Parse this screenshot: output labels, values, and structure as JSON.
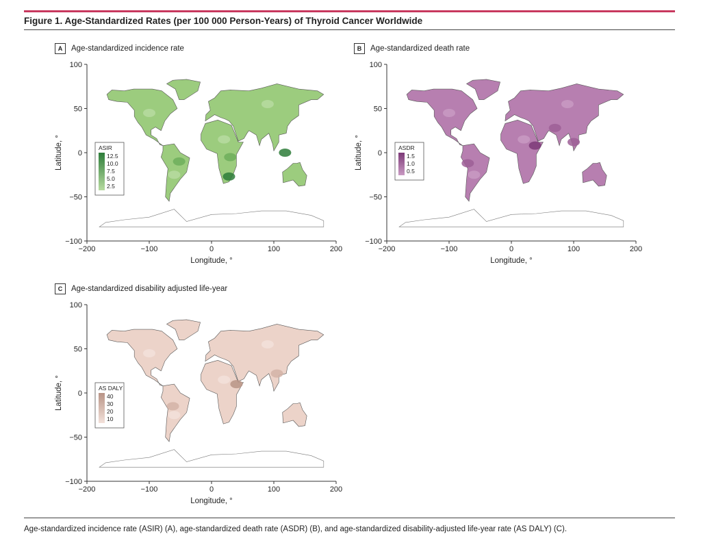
{
  "figure": {
    "title": "Figure 1. Age-Standardized Rates (per 100 000 Person-Years) of Thyroid Cancer Worldwide",
    "caption": "Age-standardized incidence rate (ASIR) (A), age-standardized death rate (ASDR) (B), and age-standardized disability-adjusted life-year rate (AS DALY) (C)."
  },
  "panels": [
    {
      "letter": "A",
      "title": "Age-standardized incidence rate",
      "legend_title": "ASIR",
      "legend_ticks": [
        "12.5",
        "10.0",
        "7.5",
        "5.0",
        "2.5"
      ],
      "colors": {
        "base": "#9ccc7e",
        "light": "#b7dba0",
        "dark": "#2e7d3a",
        "mid": "#6fae5c"
      }
    },
    {
      "letter": "B",
      "title": "Age-standardized death rate",
      "legend_title": "ASDR",
      "legend_ticks": [
        "1.5",
        "1.0",
        "0.5"
      ],
      "colors": {
        "base": "#b77fb0",
        "light": "#c99ac3",
        "dark": "#7d3a78",
        "mid": "#9e5f97"
      }
    },
    {
      "letter": "C",
      "title": "Age-standardized disability adjusted life-year",
      "legend_title": "AS DALY",
      "legend_ticks": [
        "40",
        "30",
        "20",
        "10"
      ],
      "colors": {
        "base": "#ecd3c9",
        "light": "#f3e1da",
        "dark": "#b89486",
        "mid": "#d3b3a7"
      }
    }
  ],
  "axes": {
    "xlabel": "Longitude, °",
    "ylabel": "Latitude, °",
    "x_ticks": [
      "−200",
      "−100",
      "0",
      "100",
      "200"
    ],
    "y_ticks": [
      "100",
      "50",
      "0",
      "−50",
      "−100"
    ]
  }
}
